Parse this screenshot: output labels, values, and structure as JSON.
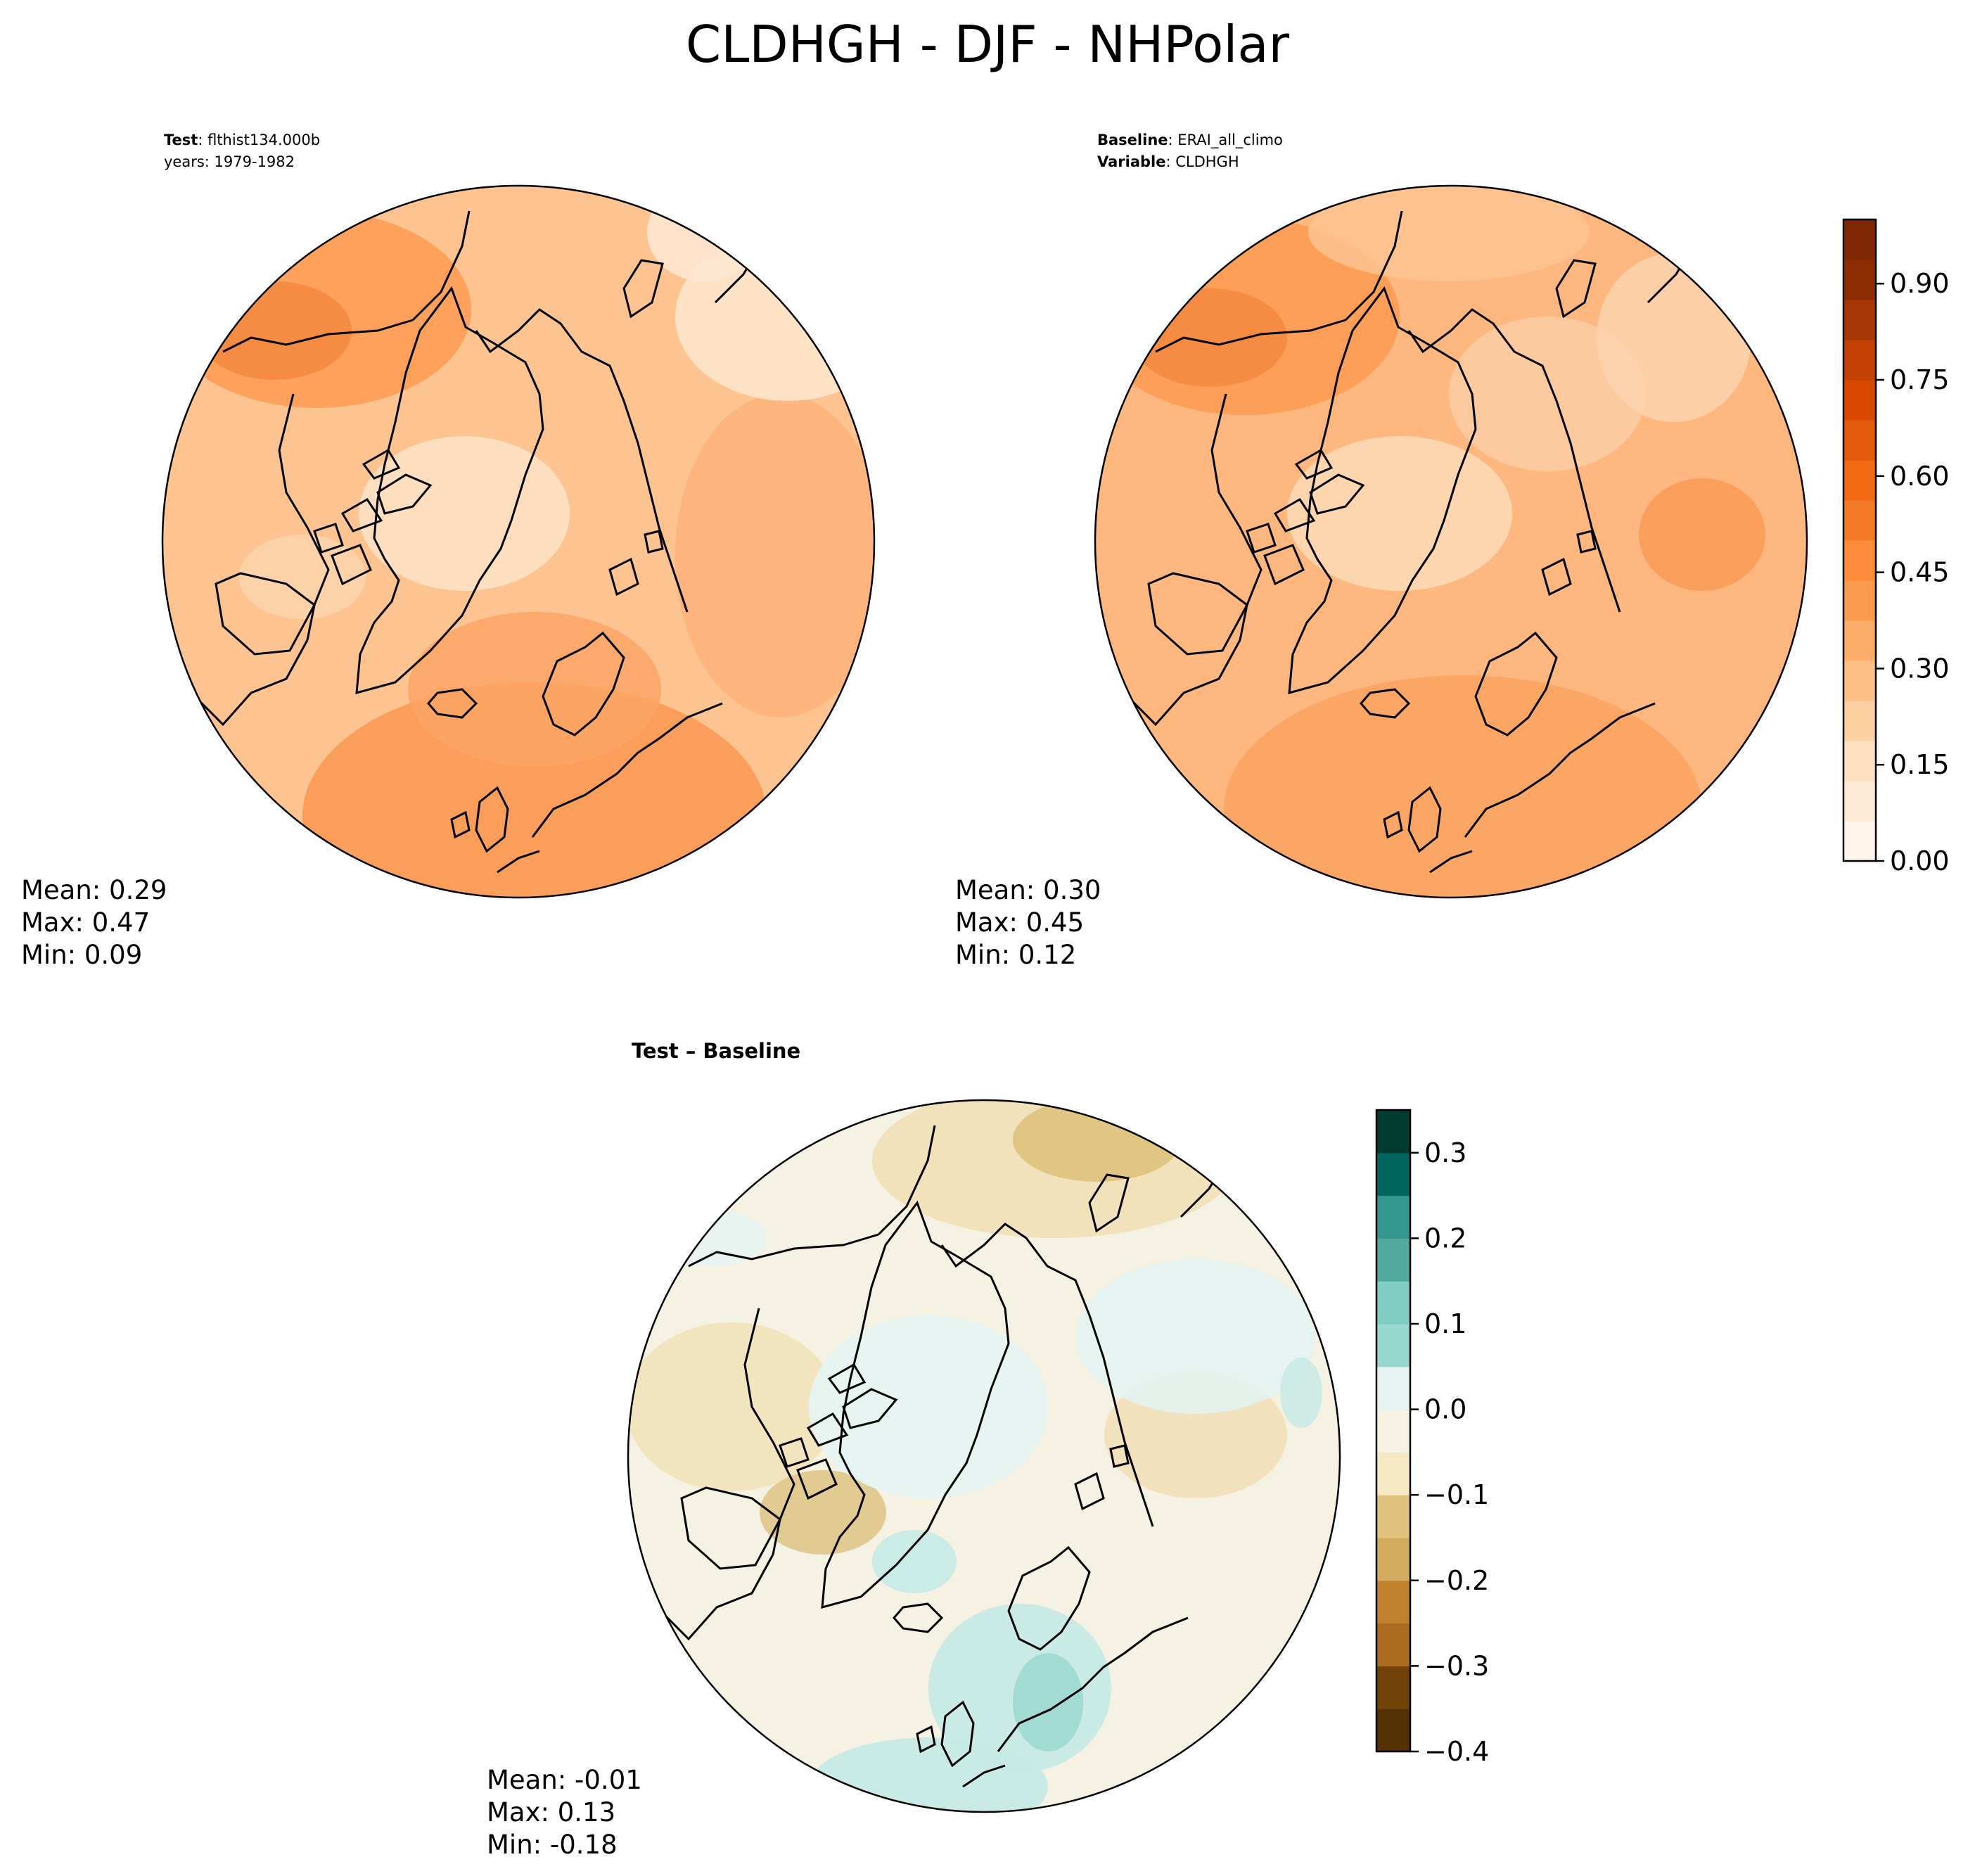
{
  "figure": {
    "title": "CLDHGH - DJF - NHPolar"
  },
  "colors": {
    "oranges": [
      "#fff5eb",
      "#feead6",
      "#fee0c1",
      "#fdd0a2",
      "#fdbf86",
      "#fdae6b",
      "#fd9c4f",
      "#fd8d3c",
      "#f57a28",
      "#f16913",
      "#e35a0c",
      "#d94801",
      "#c44103",
      "#a63603",
      "#8c2d04",
      "#7f2704"
    ],
    "brbg": [
      "#543005",
      "#704108",
      "#8c510a",
      "#a86b20",
      "#bf812d",
      "#d4ac5f",
      "#dfc27d",
      "#efd9ab",
      "#f6e8c3",
      "#f5f2e4",
      "#e6f3f1",
      "#c7eae5",
      "#97d7cd",
      "#80cdc1",
      "#52a99d",
      "#35978f",
      "#11766d",
      "#01665e",
      "#003c30"
    ]
  },
  "chart_data": [
    {
      "type": "heatmap",
      "panel": "test",
      "projection": "north polar stereographic",
      "label_line1_bold": "Test",
      "label_line1_text": ": flthist134.000b",
      "label_line2": "years: 1979-1982",
      "stats": {
        "mean": "Mean:  0.29",
        "max": "Max:  0.47",
        "min": "Min:  0.09"
      },
      "colormap": "Oranges",
      "shares_colorbar_with": "baseline"
    },
    {
      "type": "heatmap",
      "panel": "baseline",
      "projection": "north polar stereographic",
      "label_line1_bold": "Baseline",
      "label_line1_text": ": ERAI_all_climo",
      "label_line2_bold": "Variable",
      "label_line2_text": ": CLDHGH",
      "stats": {
        "mean": "Mean:  0.30",
        "max": "Max:  0.45",
        "min": "Min:  0.12"
      },
      "colormap": "Oranges",
      "colorbar": {
        "range": [
          0.0,
          1.0
        ],
        "levels": 16,
        "ticks": [
          0.0,
          0.15,
          0.3,
          0.45,
          0.6,
          0.75,
          0.9
        ],
        "tick_labels": [
          "0.00",
          "0.15",
          "0.30",
          "0.45",
          "0.60",
          "0.75",
          "0.90"
        ]
      }
    },
    {
      "type": "heatmap",
      "panel": "difference",
      "projection": "north polar stereographic",
      "title": "Test – Baseline",
      "stats": {
        "mean": "Mean: -0.01",
        "max": "Max:  0.13",
        "min": "Min: -0.18"
      },
      "colormap": "BrBG",
      "colorbar": {
        "range": [
          -0.4,
          0.35
        ],
        "levels": 15,
        "ticks": [
          -0.4,
          -0.3,
          -0.2,
          -0.1,
          0.0,
          0.1,
          0.2,
          0.3
        ],
        "tick_labels": [
          "−0.4",
          "−0.3",
          "−0.2",
          "−0.1",
          "0.0",
          "0.1",
          "0.2",
          "0.3"
        ]
      }
    }
  ]
}
